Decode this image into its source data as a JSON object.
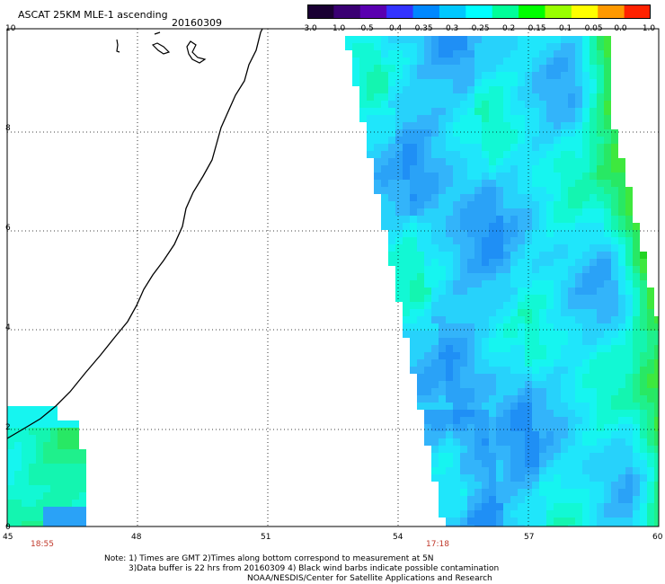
{
  "header": {
    "title": "ASCAT 25KM MLE-1 ascending",
    "date": "20160309"
  },
  "colorbar": {
    "ticks": [
      "-3.0",
      "-1.0",
      "-0.5",
      "-0.4",
      "-0.35",
      "-0.3",
      "-0.25",
      "-0.2",
      "-0.15",
      "-0.1",
      "-0.05",
      "0.0",
      "1.0"
    ],
    "colors": [
      "#1a0033",
      "#3a0073",
      "#5a00b0",
      "#3333ff",
      "#0088ff",
      "#00c8ff",
      "#00ffff",
      "#00ff99",
      "#00ff00",
      "#99ff00",
      "#ffff00",
      "#ff9900",
      "#ff2200"
    ]
  },
  "axes": {
    "y_ticks": [
      "0",
      "2",
      "4",
      "6",
      "8",
      "10"
    ],
    "x_ticks": [
      "45",
      "48",
      "51",
      "54",
      "57",
      "60"
    ]
  },
  "times": {
    "left": "18:55",
    "right": "17:18"
  },
  "notes": {
    "line1": "Note: 1) Times are GMT 2)Times along bottom correspond to measurement at 5N",
    "line2": "3)Data buffer is 22 hrs from 20160309 4) Black wind barbs indicate possible contamination",
    "line3": "NOAA/NESDIS/Center for Satellite Applications and Research"
  }
}
